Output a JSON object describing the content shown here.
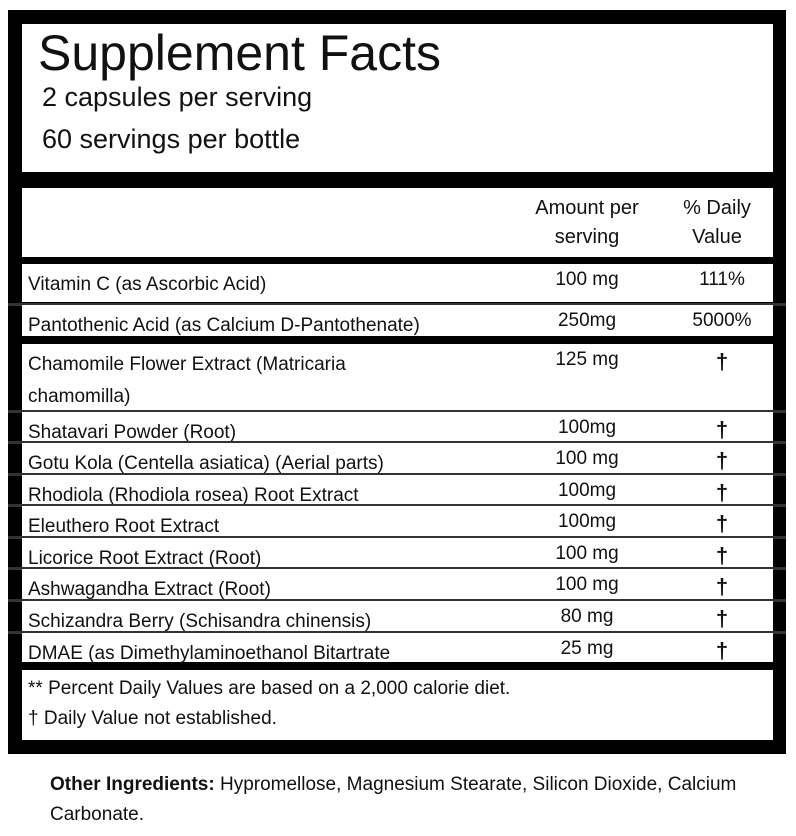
{
  "title": "Supplement Facts",
  "serving_size": "2 capsules per serving",
  "servings_per_container": "60 servings per bottle",
  "header": {
    "amount": "Amount per serving",
    "daily_value": "% Daily Value"
  },
  "vitamins": [
    {
      "name": "Vitamin C (as Ascorbic Acid)",
      "amount": "100 mg",
      "dv": "111%"
    },
    {
      "name": "Pantothenic Acid (as Calcium D-Pantothenate)",
      "amount": "250mg",
      "dv": "5000%"
    }
  ],
  "herbs": [
    {
      "name": "Chamomile Flower Extract (Matricaria chamomilla)",
      "amount": "125 mg",
      "dv": "†"
    },
    {
      "name": "Shatavari Powder (Root)",
      "amount": "100mg",
      "dv": "†"
    },
    {
      "name": "Gotu Kola (Centella asiatica) (Aerial parts)",
      "amount": "100 mg",
      "dv": "†"
    },
    {
      "name": "Rhodiola (Rhodiola rosea) Root Extract",
      "amount": "100mg",
      "dv": "†"
    },
    {
      "name": "Eleuthero Root Extract",
      "amount": "100mg",
      "dv": "†"
    },
    {
      "name": "Licorice Root Extract (Root)",
      "amount": "100 mg",
      "dv": "†"
    },
    {
      "name": "Ashwagandha Extract (Root)",
      "amount": "100 mg",
      "dv": "†"
    },
    {
      "name": "Schizandra Berry (Schisandra chinensis)",
      "amount": "80 mg",
      "dv": "†"
    },
    {
      "name": "DMAE (as Dimethylaminoethanol Bitartrate",
      "amount": "25 mg",
      "dv": "†"
    }
  ],
  "footnotes": [
    "** Percent Daily Values are based on a 2,000 calorie diet.",
    "† Daily Value not established."
  ],
  "other_ingredients": {
    "label": "Other Ingredients:",
    "text": " Hypromellose, Magnesium Stearate, Silicon Dioxide, Calcium Carbonate."
  }
}
